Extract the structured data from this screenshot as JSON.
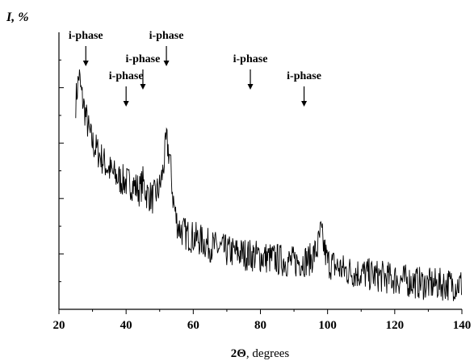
{
  "chart_data": {
    "type": "line",
    "title": "",
    "xlabel_prefix": "2Θ",
    "xlabel_suffix": ", degrees",
    "ylabel_symbol": "I",
    "ylabel_suffix": ", %",
    "xlim": [
      20,
      140
    ],
    "ylim": [
      0,
      100
    ],
    "x_ticks": [
      20,
      40,
      60,
      80,
      100,
      120,
      140
    ],
    "y_ticks_labeled": false,
    "grid": false,
    "legend": "none",
    "series": [
      {
        "color": "#000000",
        "x": [
          25,
          25.5,
          26,
          26.5,
          27,
          28,
          29,
          30,
          32,
          34,
          36,
          38,
          40,
          42,
          44,
          45,
          46,
          48,
          50,
          51,
          52,
          53,
          54,
          55,
          56,
          58,
          60,
          62,
          65,
          70,
          75,
          80,
          85,
          90,
          95,
          97,
          98,
          99,
          100,
          105,
          110,
          115,
          120,
          125,
          130,
          135,
          140
        ],
        "y": [
          75,
          80,
          85,
          79,
          76,
          70,
          64,
          60,
          56,
          52,
          49,
          47,
          46,
          45,
          43,
          46,
          42,
          40,
          44,
          50,
          61,
          55,
          40,
          32,
          29,
          27,
          26,
          25,
          23,
          21,
          20,
          19,
          18,
          17,
          18,
          22,
          28,
          22,
          17,
          14,
          13,
          12,
          11,
          10,
          9,
          9,
          9
        ]
      }
    ],
    "annotations": [
      {
        "text": "i-phase",
        "x": 28,
        "label_row": 1
      },
      {
        "text": "i-phase",
        "x": 40,
        "label_row": 3
      },
      {
        "text": "i-phase",
        "x": 45,
        "label_row": 2
      },
      {
        "text": "i-phase",
        "x": 52,
        "label_row": 1
      },
      {
        "text": "i-phase",
        "x": 77,
        "label_row": 2
      },
      {
        "text": "i-phase",
        "x": 93,
        "label_row": 3
      }
    ]
  }
}
